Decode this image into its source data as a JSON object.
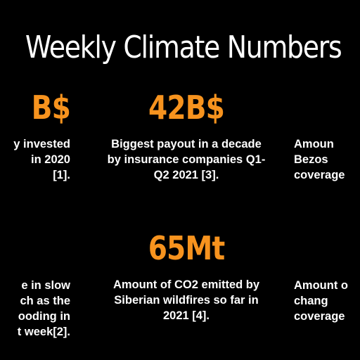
{
  "title": "Weekly Climate Numbers",
  "colors": {
    "background": "#000000",
    "accent": "#F7931E",
    "text": "#FFFFFF"
  },
  "stats": {
    "top_left": {
      "number": "B$",
      "description": "y invested\nin 2020\n[1]."
    },
    "top_center": {
      "number": "42B$",
      "description": "Biggest payout in a decade\nby insurance companies Q1-\nQ2 2021 [3]."
    },
    "top_right": {
      "description": "Amoun\nBezos\ncoverage"
    },
    "bottom_left": {
      "description": "e in slow\nch as the\nooding in\nt week[2]."
    },
    "bottom_center": {
      "number": "65Mt",
      "description": "Amount of CO2 emitted by\nSiberian wildfires so far in\n2021 [4]."
    },
    "bottom_right": {
      "description": "Amount o\nchang\ncoverage"
    }
  }
}
